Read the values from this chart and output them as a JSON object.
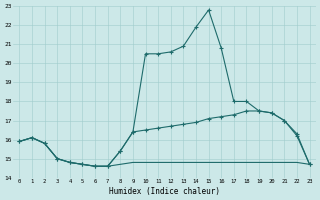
{
  "xlabel": "Humidex (Indice chaleur)",
  "xlim": [
    -0.5,
    23.5
  ],
  "ylim": [
    14,
    23
  ],
  "yticks": [
    14,
    15,
    16,
    17,
    18,
    19,
    20,
    21,
    22,
    23
  ],
  "xticks": [
    0,
    1,
    2,
    3,
    4,
    5,
    6,
    7,
    8,
    9,
    10,
    11,
    12,
    13,
    14,
    15,
    16,
    17,
    18,
    19,
    20,
    21,
    22,
    23
  ],
  "bg_color": "#cce8e8",
  "line_color": "#1e6b6b",
  "line_bottom": {
    "x": [
      0,
      1,
      2,
      3,
      4,
      5,
      6,
      7,
      8,
      9,
      10,
      11,
      12,
      13,
      14,
      15,
      16,
      17,
      18,
      19,
      20,
      21,
      22,
      23
    ],
    "y": [
      15.9,
      16.1,
      15.8,
      15.0,
      14.8,
      14.7,
      14.6,
      14.6,
      14.7,
      14.8,
      14.8,
      14.8,
      14.8,
      14.8,
      14.8,
      14.8,
      14.8,
      14.8,
      14.8,
      14.8,
      14.8,
      14.8,
      14.8,
      14.7
    ]
  },
  "line_mid": {
    "x": [
      0,
      1,
      2,
      3,
      4,
      5,
      6,
      7,
      8,
      9,
      10,
      11,
      12,
      13,
      14,
      15,
      16,
      17,
      18,
      19,
      20,
      21,
      22,
      23
    ],
    "y": [
      15.9,
      16.1,
      15.8,
      15.0,
      14.8,
      14.7,
      14.6,
      14.6,
      15.4,
      16.4,
      16.5,
      16.6,
      16.7,
      16.8,
      16.9,
      17.1,
      17.2,
      17.3,
      17.5,
      17.5,
      17.4,
      17.0,
      16.3,
      14.7
    ]
  },
  "line_top": {
    "x": [
      0,
      1,
      2,
      3,
      4,
      5,
      6,
      7,
      8,
      9,
      10,
      11,
      12,
      13,
      14,
      15,
      16,
      17,
      18,
      19,
      20,
      21,
      22,
      23
    ],
    "y": [
      15.9,
      16.1,
      15.8,
      15.0,
      14.8,
      14.7,
      14.6,
      14.6,
      15.4,
      16.4,
      20.5,
      20.5,
      20.6,
      20.9,
      21.9,
      22.8,
      20.8,
      18.0,
      18.0,
      17.5,
      17.4,
      17.0,
      16.2,
      14.7
    ]
  }
}
